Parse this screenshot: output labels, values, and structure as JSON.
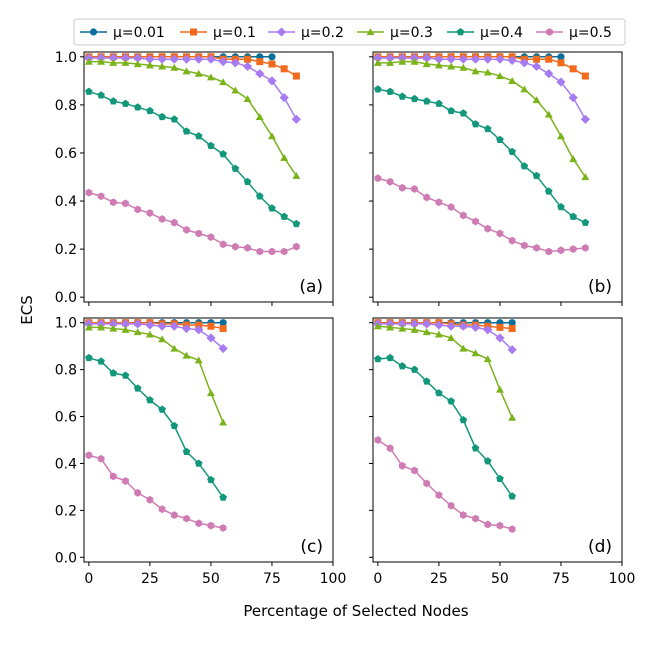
{
  "figure": {
    "ylabel": "ECS",
    "xlabel": "Percentage of Selected Nodes"
  },
  "legend": {
    "placement": "top-center",
    "entries": [
      {
        "name": "μ=0.01",
        "color": "#0a6f9b",
        "marker": "circle"
      },
      {
        "name": "μ=0.1",
        "color": "#f26b1d",
        "marker": "square"
      },
      {
        "name": "μ=0.2",
        "color": "#a77cf2",
        "marker": "diamond"
      },
      {
        "name": "μ=0.3",
        "color": "#7bb31b",
        "marker": "triangle"
      },
      {
        "name": "μ=0.4",
        "color": "#12977a",
        "marker": "pentagon"
      },
      {
        "name": "μ=0.5",
        "color": "#cf7bb4",
        "marker": "hexagon"
      }
    ]
  },
  "chart_data": [
    {
      "type": "line",
      "panel_label": "(a)",
      "xlim": [
        -2,
        100
      ],
      "ylim": [
        -0.02,
        1.02
      ],
      "xticks": [
        0,
        25,
        50,
        75,
        100
      ],
      "xtick_labels": [
        "0",
        "25",
        "50",
        "75",
        "100"
      ],
      "show_xtick_labels": false,
      "yticks": [
        0.0,
        0.2,
        0.4,
        0.6,
        0.8,
        1.0
      ],
      "ytick_labels": [
        "0.0",
        "0.2",
        "0.4",
        "0.6",
        "0.8",
        "1.0"
      ],
      "show_ytick_labels": true,
      "grid": false,
      "series": [
        {
          "name": "μ=0.01",
          "x": [
            0,
            5,
            10,
            15,
            20,
            25,
            30,
            35,
            40,
            45,
            50,
            55,
            60,
            65,
            70,
            75
          ],
          "y": [
            1.0,
            1.0,
            1.0,
            1.0,
            1.0,
            1.0,
            1.0,
            1.0,
            1.0,
            1.0,
            1.0,
            1.0,
            1.0,
            1.0,
            1.0,
            1.0
          ]
        },
        {
          "name": "μ=0.1",
          "x": [
            0,
            5,
            10,
            15,
            20,
            25,
            30,
            35,
            40,
            45,
            50,
            55,
            60,
            65,
            70,
            75,
            80,
            85
          ],
          "y": [
            1.0,
            1.0,
            1.0,
            1.0,
            1.0,
            1.0,
            1.0,
            1.0,
            1.0,
            1.0,
            1.0,
            0.99,
            0.99,
            0.99,
            0.98,
            0.97,
            0.95,
            0.92
          ]
        },
        {
          "name": "μ=0.2",
          "x": [
            0,
            5,
            10,
            15,
            20,
            25,
            30,
            35,
            40,
            45,
            50,
            55,
            60,
            65,
            70,
            75,
            80,
            85
          ],
          "y": [
            0.995,
            0.995,
            0.995,
            0.995,
            0.995,
            0.99,
            0.99,
            0.99,
            0.99,
            0.99,
            0.99,
            0.98,
            0.975,
            0.96,
            0.93,
            0.9,
            0.83,
            0.74
          ]
        },
        {
          "name": "μ=0.3",
          "x": [
            0,
            5,
            10,
            15,
            20,
            25,
            30,
            35,
            40,
            45,
            50,
            55,
            60,
            65,
            70,
            75,
            80,
            85
          ],
          "y": [
            0.98,
            0.98,
            0.975,
            0.975,
            0.97,
            0.965,
            0.96,
            0.955,
            0.94,
            0.93,
            0.915,
            0.895,
            0.86,
            0.825,
            0.75,
            0.67,
            0.58,
            0.505
          ]
        },
        {
          "name": "μ=0.4",
          "x": [
            0,
            5,
            10,
            15,
            20,
            25,
            30,
            35,
            40,
            45,
            50,
            55,
            60,
            65,
            70,
            75,
            80,
            85
          ],
          "y": [
            0.855,
            0.84,
            0.815,
            0.805,
            0.79,
            0.775,
            0.75,
            0.74,
            0.69,
            0.67,
            0.63,
            0.595,
            0.535,
            0.48,
            0.42,
            0.37,
            0.335,
            0.305
          ]
        },
        {
          "name": "μ=0.5",
          "x": [
            0,
            5,
            10,
            15,
            20,
            25,
            30,
            35,
            40,
            45,
            50,
            55,
            60,
            65,
            70,
            75,
            80,
            85
          ],
          "y": [
            0.435,
            0.42,
            0.395,
            0.39,
            0.365,
            0.35,
            0.325,
            0.31,
            0.28,
            0.265,
            0.25,
            0.22,
            0.21,
            0.205,
            0.19,
            0.19,
            0.19,
            0.21
          ]
        }
      ]
    },
    {
      "type": "line",
      "panel_label": "(b)",
      "xlim": [
        -2,
        100
      ],
      "ylim": [
        -0.02,
        1.02
      ],
      "xticks": [
        0,
        25,
        50,
        75,
        100
      ],
      "xtick_labels": [
        "0",
        "25",
        "50",
        "75",
        "100"
      ],
      "show_xtick_labels": false,
      "yticks": [
        0.0,
        0.2,
        0.4,
        0.6,
        0.8,
        1.0
      ],
      "ytick_labels": [
        "0.0",
        "0.2",
        "0.4",
        "0.6",
        "0.8",
        "1.0"
      ],
      "show_ytick_labels": false,
      "grid": false,
      "series": [
        {
          "name": "μ=0.01",
          "x": [
            0,
            5,
            10,
            15,
            20,
            25,
            30,
            35,
            40,
            45,
            50,
            55,
            60,
            65,
            70,
            75
          ],
          "y": [
            1.0,
            1.0,
            1.0,
            1.0,
            1.0,
            1.0,
            1.0,
            1.0,
            1.0,
            1.0,
            1.0,
            1.0,
            1.0,
            1.0,
            1.0,
            1.0
          ]
        },
        {
          "name": "μ=0.1",
          "x": [
            0,
            5,
            10,
            15,
            20,
            25,
            30,
            35,
            40,
            45,
            50,
            55,
            60,
            65,
            70,
            75,
            80,
            85
          ],
          "y": [
            1.0,
            1.0,
            1.0,
            1.0,
            1.0,
            1.0,
            1.0,
            1.0,
            1.0,
            1.0,
            1.0,
            1.0,
            0.99,
            0.99,
            0.99,
            0.975,
            0.95,
            0.92
          ]
        },
        {
          "name": "μ=0.2",
          "x": [
            0,
            5,
            10,
            15,
            20,
            25,
            30,
            35,
            40,
            45,
            50,
            55,
            60,
            65,
            70,
            75,
            80,
            85
          ],
          "y": [
            0.995,
            0.995,
            0.995,
            0.995,
            0.995,
            0.99,
            0.99,
            0.99,
            0.99,
            0.99,
            0.99,
            0.985,
            0.975,
            0.96,
            0.93,
            0.895,
            0.83,
            0.74
          ]
        },
        {
          "name": "μ=0.3",
          "x": [
            0,
            5,
            10,
            15,
            20,
            25,
            30,
            35,
            40,
            45,
            50,
            55,
            60,
            65,
            70,
            75,
            80,
            85
          ],
          "y": [
            0.975,
            0.975,
            0.98,
            0.98,
            0.97,
            0.965,
            0.96,
            0.955,
            0.94,
            0.935,
            0.92,
            0.9,
            0.865,
            0.82,
            0.76,
            0.67,
            0.575,
            0.5
          ]
        },
        {
          "name": "μ=0.4",
          "x": [
            0,
            5,
            10,
            15,
            20,
            25,
            30,
            35,
            40,
            45,
            50,
            55,
            60,
            65,
            70,
            75,
            80,
            85
          ],
          "y": [
            0.865,
            0.855,
            0.835,
            0.825,
            0.815,
            0.805,
            0.775,
            0.765,
            0.72,
            0.7,
            0.655,
            0.605,
            0.545,
            0.505,
            0.44,
            0.375,
            0.335,
            0.31
          ]
        },
        {
          "name": "μ=0.5",
          "x": [
            0,
            5,
            10,
            15,
            20,
            25,
            30,
            35,
            40,
            45,
            50,
            55,
            60,
            65,
            70,
            75,
            80,
            85
          ],
          "y": [
            0.495,
            0.48,
            0.455,
            0.45,
            0.415,
            0.395,
            0.375,
            0.34,
            0.315,
            0.285,
            0.265,
            0.235,
            0.215,
            0.205,
            0.19,
            0.195,
            0.2,
            0.205
          ]
        }
      ]
    },
    {
      "type": "line",
      "panel_label": "(c)",
      "xlim": [
        -2,
        100
      ],
      "ylim": [
        -0.02,
        1.02
      ],
      "xticks": [
        0,
        25,
        50,
        75,
        100
      ],
      "xtick_labels": [
        "0",
        "25",
        "50",
        "75",
        "100"
      ],
      "show_xtick_labels": true,
      "yticks": [
        0.0,
        0.2,
        0.4,
        0.6,
        0.8,
        1.0
      ],
      "ytick_labels": [
        "0.0",
        "0.2",
        "0.4",
        "0.6",
        "0.8",
        "1.0"
      ],
      "show_ytick_labels": true,
      "grid": false,
      "series": [
        {
          "name": "μ=0.01",
          "x": [
            0,
            5,
            10,
            15,
            20,
            25,
            30,
            35,
            40,
            45,
            50,
            55
          ],
          "y": [
            1.0,
            1.0,
            1.0,
            1.0,
            1.0,
            1.0,
            1.0,
            1.0,
            1.0,
            1.0,
            1.0,
            1.0
          ]
        },
        {
          "name": "μ=0.1",
          "x": [
            0,
            5,
            10,
            15,
            20,
            25,
            30,
            35,
            40,
            45,
            50,
            55
          ],
          "y": [
            1.0,
            1.0,
            1.0,
            1.0,
            1.0,
            1.0,
            0.995,
            0.995,
            0.99,
            0.99,
            0.985,
            0.975
          ]
        },
        {
          "name": "μ=0.2",
          "x": [
            0,
            5,
            10,
            15,
            20,
            25,
            30,
            35,
            40,
            45,
            50,
            55
          ],
          "y": [
            0.995,
            0.995,
            0.995,
            0.995,
            0.995,
            0.99,
            0.985,
            0.985,
            0.975,
            0.97,
            0.935,
            0.89
          ]
        },
        {
          "name": "μ=0.3",
          "x": [
            0,
            5,
            10,
            15,
            20,
            25,
            30,
            35,
            40,
            45,
            50,
            55
          ],
          "y": [
            0.98,
            0.98,
            0.975,
            0.97,
            0.96,
            0.95,
            0.93,
            0.89,
            0.86,
            0.84,
            0.7,
            0.575
          ]
        },
        {
          "name": "μ=0.4",
          "x": [
            0,
            5,
            10,
            15,
            20,
            25,
            30,
            35,
            40,
            45,
            50,
            55
          ],
          "y": [
            0.85,
            0.835,
            0.785,
            0.775,
            0.72,
            0.67,
            0.63,
            0.56,
            0.45,
            0.4,
            0.33,
            0.255
          ]
        },
        {
          "name": "μ=0.5",
          "x": [
            0,
            5,
            10,
            15,
            20,
            25,
            30,
            35,
            40,
            45,
            50,
            55
          ],
          "y": [
            0.435,
            0.42,
            0.345,
            0.325,
            0.275,
            0.245,
            0.205,
            0.18,
            0.165,
            0.145,
            0.135,
            0.125
          ]
        }
      ]
    },
    {
      "type": "line",
      "panel_label": "(d)",
      "xlim": [
        -2,
        100
      ],
      "ylim": [
        -0.02,
        1.02
      ],
      "xticks": [
        0,
        25,
        50,
        75,
        100
      ],
      "xtick_labels": [
        "0",
        "25",
        "50",
        "75",
        "100"
      ],
      "show_xtick_labels": true,
      "yticks": [
        0.0,
        0.2,
        0.4,
        0.6,
        0.8,
        1.0
      ],
      "ytick_labels": [
        "0.0",
        "0.2",
        "0.4",
        "0.6",
        "0.8",
        "1.0"
      ],
      "show_ytick_labels": false,
      "grid": false,
      "series": [
        {
          "name": "μ=0.01",
          "x": [
            0,
            5,
            10,
            15,
            20,
            25,
            30,
            35,
            40,
            45,
            50,
            55
          ],
          "y": [
            1.0,
            1.0,
            1.0,
            1.0,
            1.0,
            1.0,
            1.0,
            1.0,
            1.0,
            1.0,
            1.0,
            1.0
          ]
        },
        {
          "name": "μ=0.1",
          "x": [
            0,
            5,
            10,
            15,
            20,
            25,
            30,
            35,
            40,
            45,
            50,
            55
          ],
          "y": [
            1.0,
            1.0,
            1.0,
            1.0,
            1.0,
            1.0,
            0.995,
            0.99,
            0.99,
            0.985,
            0.98,
            0.975
          ]
        },
        {
          "name": "μ=0.2",
          "x": [
            0,
            5,
            10,
            15,
            20,
            25,
            30,
            35,
            40,
            45,
            50,
            55
          ],
          "y": [
            0.995,
            0.995,
            0.995,
            0.995,
            0.995,
            0.99,
            0.985,
            0.985,
            0.98,
            0.97,
            0.935,
            0.885
          ]
        },
        {
          "name": "μ=0.3",
          "x": [
            0,
            5,
            10,
            15,
            20,
            25,
            30,
            35,
            40,
            45,
            50,
            55
          ],
          "y": [
            0.985,
            0.98,
            0.975,
            0.97,
            0.96,
            0.95,
            0.935,
            0.89,
            0.87,
            0.845,
            0.715,
            0.595
          ]
        },
        {
          "name": "μ=0.4",
          "x": [
            0,
            5,
            10,
            15,
            20,
            25,
            30,
            35,
            40,
            45,
            50,
            55
          ],
          "y": [
            0.845,
            0.85,
            0.815,
            0.8,
            0.75,
            0.7,
            0.665,
            0.585,
            0.465,
            0.41,
            0.335,
            0.26
          ]
        },
        {
          "name": "μ=0.5",
          "x": [
            0,
            5,
            10,
            15,
            20,
            25,
            30,
            35,
            40,
            45,
            50,
            55
          ],
          "y": [
            0.5,
            0.465,
            0.39,
            0.37,
            0.315,
            0.265,
            0.22,
            0.18,
            0.165,
            0.14,
            0.135,
            0.12
          ]
        }
      ]
    }
  ]
}
